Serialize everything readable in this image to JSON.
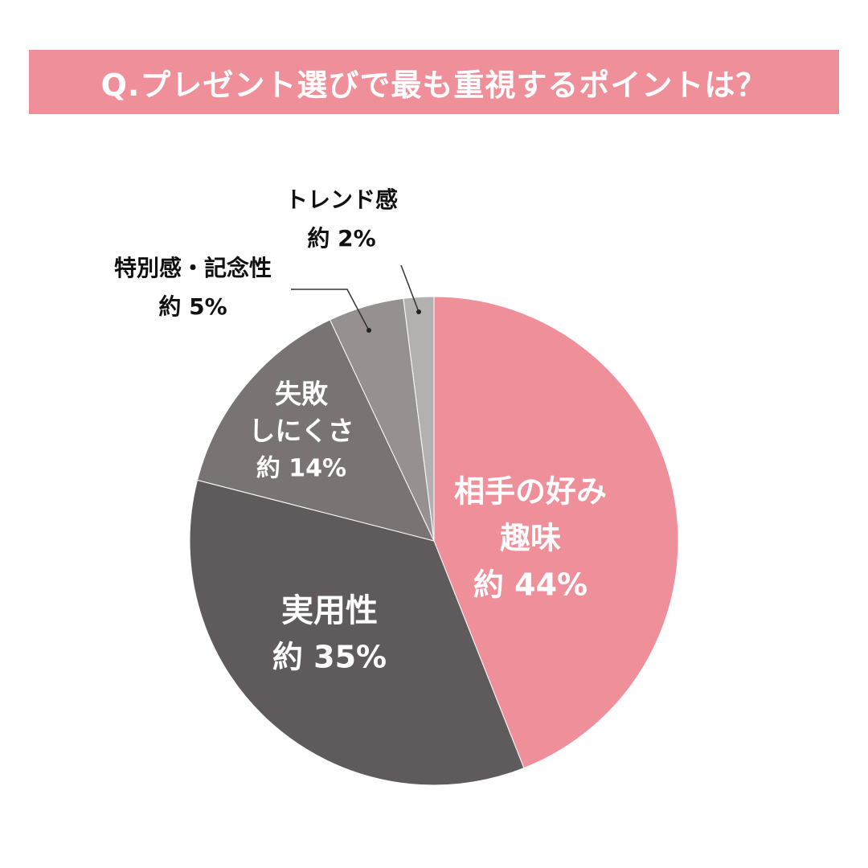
{
  "title": "Q.プレゼント選びで最も重視するポイントは？",
  "colors": {
    "banner": "#ef8f9a",
    "leader": "#333333"
  },
  "chart_data": {
    "type": "pie",
    "title": "Q.プレゼント選びで最も重視するポイントは？",
    "start_angle_deg": 0,
    "direction": "clockwise",
    "slices": [
      {
        "label_lines": [
          "相手の好み",
          "趣味"
        ],
        "pct_text": "約 44%",
        "value": 44,
        "color": "#ef8f9a",
        "text_color": "#ffffff"
      },
      {
        "label_lines": [
          "実用性"
        ],
        "pct_text": "約 35%",
        "value": 35,
        "color": "#5f5a5b",
        "text_color": "#ffffff"
      },
      {
        "label_lines": [
          "失敗",
          "しにくさ"
        ],
        "pct_text": "約 14%",
        "value": 14,
        "color": "#7a7373",
        "text_color": "#ffffff"
      },
      {
        "label_lines": [
          "特別感・記念性"
        ],
        "pct_text": "約 5%",
        "value": 5,
        "color": "#969090",
        "text_color": "#111111"
      },
      {
        "label_lines": [
          "トレンド感"
        ],
        "pct_text": "約 2%",
        "value": 2,
        "color": "#b4b0b0",
        "text_color": "#111111"
      }
    ]
  }
}
